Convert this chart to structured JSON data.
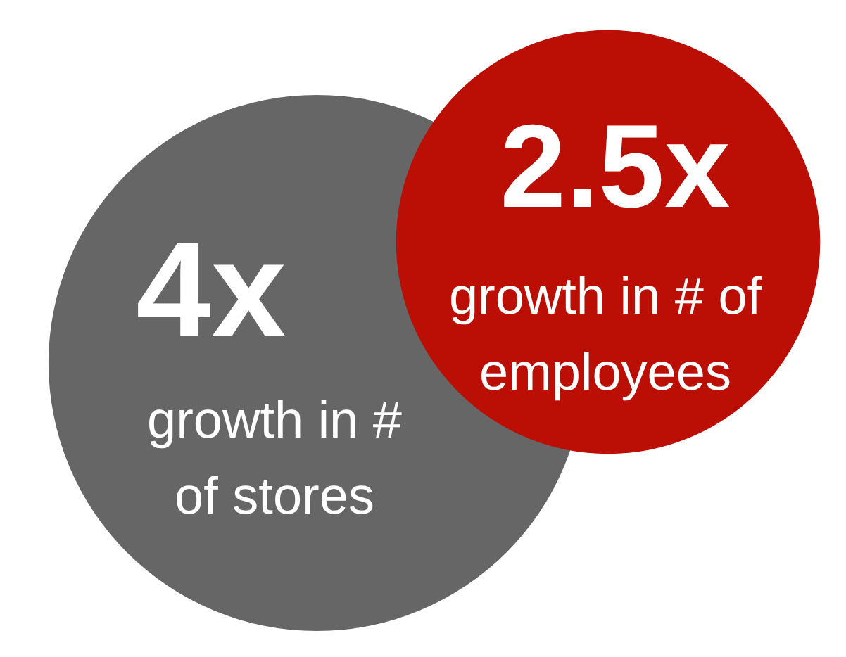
{
  "chart_data": {
    "type": "other",
    "categories": [
      "growth in # of stores",
      "growth in # of employees"
    ],
    "values": [
      4,
      2.5
    ],
    "value_labels": [
      "4x",
      "2.5x"
    ],
    "colors": [
      "#666666",
      "#bb0f05"
    ]
  }
}
